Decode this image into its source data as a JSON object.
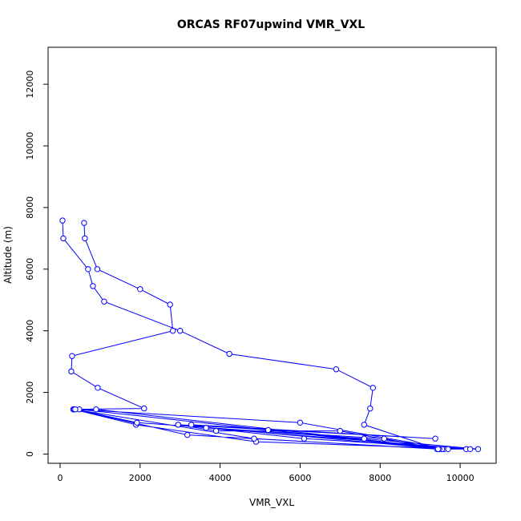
{
  "chart_data": {
    "type": "line",
    "title": "ORCAS RF07upwind VMR_VXL",
    "xlabel": "VMR_VXL",
    "ylabel": "Altitude (m)",
    "xlim": [
      -300,
      10900
    ],
    "ylim": [
      -300,
      13200
    ],
    "xticks": [
      0,
      2000,
      4000,
      6000,
      8000,
      10000
    ],
    "yticks": [
      0,
      2000,
      4000,
      6000,
      8000,
      10000,
      12000
    ],
    "grid": false,
    "legend": "none",
    "colors": {
      "series": "#0000ff",
      "axes": "#000000"
    },
    "series": [
      {
        "x": [
          600,
          620,
          930,
          2000,
          2750,
          2820,
          300,
          280,
          940,
          2100,
          330,
          1900,
          4900,
          10150,
          9420,
          4850,
          350,
          3180,
          9470,
          9600,
          480,
          900,
          9700,
          6000,
          380,
          1920,
          7600,
          10450,
          9550,
          2950,
          6100,
          10250,
          3650,
          8100,
          9480,
          5200,
          3280,
          9380,
          2950,
          3900,
          7000,
          9450,
          7600,
          7750,
          7820,
          6900,
          4230,
          3000,
          1100,
          820,
          700,
          80,
          60
        ],
        "y": [
          7500,
          7000,
          6000,
          5350,
          4850,
          4000,
          3180,
          2680,
          2150,
          1480,
          1450,
          950,
          400,
          160,
          160,
          500,
          1450,
          620,
          160,
          160,
          1450,
          1450,
          160,
          1020,
          1450,
          1020,
          500,
          160,
          160,
          950,
          500,
          160,
          850,
          500,
          160,
          780,
          950,
          500,
          950,
          750,
          750,
          160,
          950,
          1480,
          2150,
          2750,
          3250,
          4000,
          4950,
          5450,
          6000,
          7000,
          7580
        ]
      }
    ]
  }
}
